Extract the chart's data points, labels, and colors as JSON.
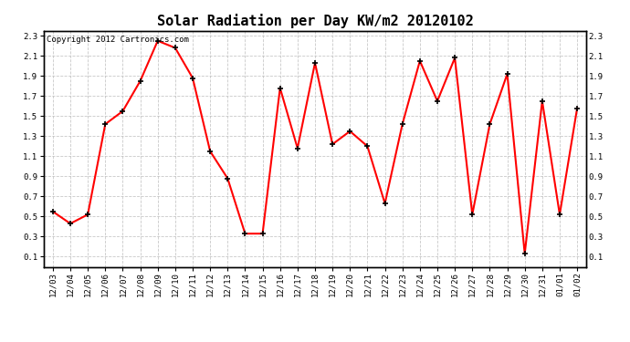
{
  "title": "Solar Radiation per Day KW/m2 20120102",
  "copyright_text": "Copyright 2012 Cartronics.com",
  "labels": [
    "12/03",
    "12/04",
    "12/05",
    "12/06",
    "12/07",
    "12/08",
    "12/09",
    "12/10",
    "12/11",
    "12/12",
    "12/13",
    "12/14",
    "12/15",
    "12/16",
    "12/17",
    "12/18",
    "12/19",
    "12/20",
    "12/21",
    "12/22",
    "12/23",
    "12/24",
    "12/25",
    "12/26",
    "12/27",
    "12/28",
    "12/29",
    "12/30",
    "12/31",
    "01/01",
    "01/02"
  ],
  "values": [
    0.55,
    0.43,
    0.52,
    1.42,
    1.55,
    1.85,
    2.25,
    2.18,
    1.88,
    1.15,
    0.88,
    0.33,
    0.33,
    1.78,
    1.18,
    2.03,
    1.22,
    1.35,
    1.2,
    0.63,
    1.42,
    2.05,
    1.65,
    2.08,
    0.52,
    1.42,
    1.92,
    0.13,
    1.65,
    0.52,
    1.58
  ],
  "line_color": "#ff0000",
  "marker": "+",
  "marker_color": "#000000",
  "background_color": "#ffffff",
  "plot_bg_color": "#ffffff",
  "grid_color": "#bbbbbb",
  "ylim": [
    0.0,
    2.35
  ],
  "yticks": [
    0.1,
    0.3,
    0.5,
    0.7,
    0.9,
    1.1,
    1.3,
    1.5,
    1.7,
    1.9,
    2.1,
    2.3
  ],
  "ytick_labels": [
    "0.1",
    "0.3",
    "0.5",
    "0.7",
    "0.9",
    "1.1",
    "1.3",
    "1.5",
    "1.7",
    "1.9",
    "2.1",
    "2.3"
  ],
  "title_fontsize": 11,
  "copyright_fontsize": 6.5,
  "tick_fontsize": 6.5,
  "linewidth": 1.5,
  "markersize": 5
}
